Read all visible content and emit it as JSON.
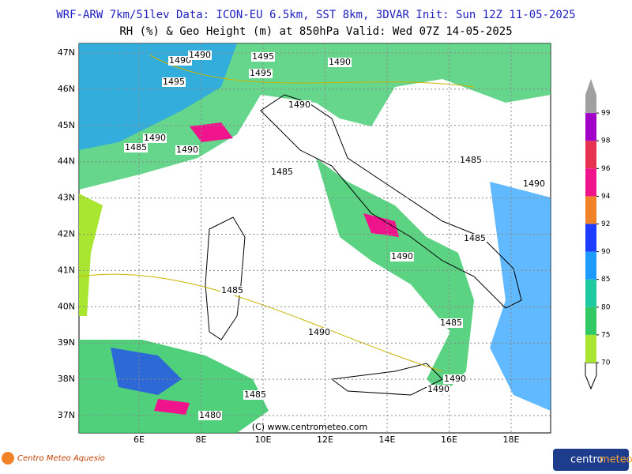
{
  "header": {
    "line1": "WRF-ARW 7km/51lev  Data: ICON-EU 6.5km, SST 8km, 3DVAR  Init: Sun 12Z 11-05-2025",
    "line2": "RH (%) & Geo Height (m) at 850hPa  Valid: Wed 07Z 14-05-2025"
  },
  "map": {
    "lat_labels": [
      "47N",
      "46N",
      "45N",
      "44N",
      "43N",
      "42N",
      "41N",
      "40N",
      "39N",
      "38N",
      "37N"
    ],
    "lon_labels": [
      "6E",
      "8E",
      "10E",
      "12E",
      "14E",
      "16E",
      "18E"
    ],
    "contour_labels": [
      1490,
      1495,
      1495,
      1490,
      1485,
      1490,
      1495,
      1490,
      1485,
      1490,
      1490,
      1485,
      1485,
      1490,
      1485,
      1490,
      1485,
      1490,
      1490,
      1490,
      1485,
      1480
    ],
    "credit": "(C) www.centrometeo.com"
  },
  "colorbar": {
    "levels": [
      70,
      75,
      80,
      85,
      90,
      92,
      94,
      96,
      98,
      99
    ],
    "colors": [
      "#a8e632",
      "#32c864",
      "#1ec8a0",
      "#1e9bff",
      "#1e3cff",
      "#f08228",
      "#f0148c",
      "#e63250",
      "#a000c8"
    ],
    "top_color": "#a0a0a0"
  },
  "footer": {
    "left_logo": "Centro Meteo Aquesio",
    "right_logo_a": "centro",
    "right_logo_b": "meteo"
  }
}
